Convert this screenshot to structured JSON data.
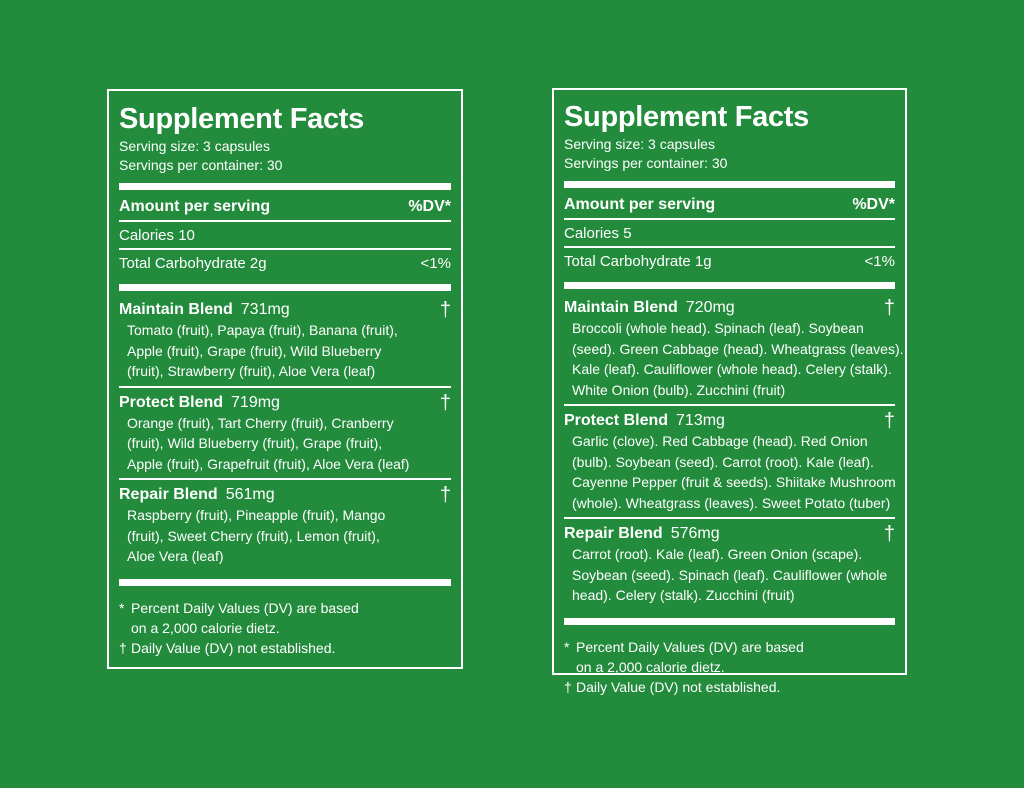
{
  "panels": [
    {
      "title": "Supplement Facts",
      "serving_size": "Serving size: 3 capsules",
      "servings_per_container": "Servings per container: 30",
      "amount_label": "Amount per serving",
      "dv_label": "%DV*",
      "calories": {
        "label": "Calories",
        "value": "10"
      },
      "carbohydrate": {
        "label": "Total Carbohydrate",
        "value": "2g",
        "dv": "<1%"
      },
      "blends": [
        {
          "name": "Maintain Blend",
          "amount": "731mg",
          "mark": "†",
          "lines": [
            "Tomato (fruit), Papaya (fruit), Banana (fruit),",
            "Apple (fruit), Grape (fruit), Wild Blueberry",
            "(fruit), Strawberry (fruit), Aloe Vera (leaf)"
          ]
        },
        {
          "name": "Protect Blend",
          "amount": "719mg",
          "mark": "†",
          "lines": [
            "Orange (fruit), Tart Cherry (fruit), Cranberry",
            "(fruit), Wild Blueberry (fruit), Grape (fruit),",
            "Apple (fruit), Grapefruit (fruit), Aloe Vera (leaf)"
          ]
        },
        {
          "name": "Repair Blend",
          "amount": "561mg",
          "mark": "†",
          "lines": [
            "Raspberry (fruit), Pineapple (fruit), Mango",
            "(fruit), Sweet Cherry (fruit), Lemon (fruit),",
            "Aloe Vera (leaf)"
          ]
        }
      ],
      "footnotes": [
        {
          "mark": "*",
          "lines": [
            "Percent Daily Values (DV) are based",
            "on a 2,000 calorie dietz."
          ]
        },
        {
          "mark": "†",
          "lines": [
            "Daily  Value (DV) not established."
          ]
        }
      ]
    },
    {
      "title": "Supplement Facts",
      "serving_size": "Serving size: 3 capsules",
      "servings_per_container": "Servings per container: 30",
      "amount_label": "Amount per serving",
      "dv_label": "%DV*",
      "calories": {
        "label": "Calories",
        "value": "5"
      },
      "carbohydrate": {
        "label": "Total Carbohydrate",
        "value": "1g",
        "dv": "<1%"
      },
      "blends": [
        {
          "name": "Maintain Blend",
          "amount": "720mg",
          "mark": "†",
          "lines": [
            "Broccoli (whole head). Spinach (leaf). Soybean",
            "(seed). Green Cabbage (head). Wheatgrass (leaves).",
            "Kale (leaf). Cauliflower (whole head). Celery (stalk).",
            "White Onion (bulb). Zucchini (fruit)"
          ]
        },
        {
          "name": "Protect Blend",
          "amount": "713mg",
          "mark": "†",
          "lines": [
            "Garlic (clove). Red Cabbage (head). Red Onion",
            "(bulb). Soybean (seed). Carrot (root). Kale (leaf).",
            "Cayenne Pepper (fruit & seeds). Shiitake Mushroom",
            "(whole). Wheatgrass (leaves). Sweet Potato (tuber)"
          ]
        },
        {
          "name": "Repair Blend",
          "amount": "576mg",
          "mark": "†",
          "lines": [
            "Carrot (root). Kale (leaf). Green Onion (scape).",
            "Soybean (seed). Spinach (leaf). Cauliflower (whole",
            "head). Celery (stalk). Zucchini (fruit)"
          ]
        }
      ],
      "footnotes": [
        {
          "mark": "*",
          "lines": [
            "Percent Daily Values (DV) are based",
            "on a 2,000 calorie dietz."
          ]
        },
        {
          "mark": "†",
          "lines": [
            "Daily  Value (DV) not established."
          ]
        }
      ]
    }
  ]
}
